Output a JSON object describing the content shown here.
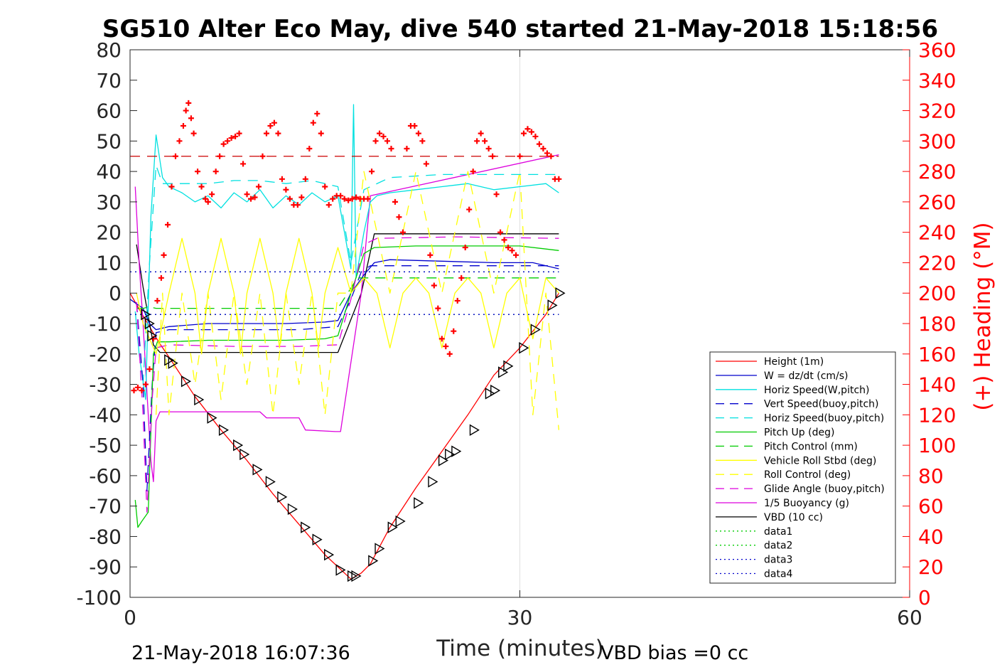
{
  "chart_data": {
    "type": "line",
    "title": "SG510 Alter Eco May, dive 540 started 21-May-2018 15:18:56",
    "xlabel": "Time (minutes)",
    "ylabel": "",
    "y2label": "(+) Heading (°M)",
    "xlim": [
      0,
      60
    ],
    "ylim": [
      -100,
      80
    ],
    "y2lim": [
      0,
      360
    ],
    "x_ticks": [
      "0",
      "30",
      "60"
    ],
    "y_ticks": [
      "80",
      "70",
      "60",
      "50",
      "40",
      "30",
      "20",
      "10",
      "0",
      "-10",
      "-20",
      "-30",
      "-40",
      "-50",
      "-60",
      "-70",
      "-80",
      "-90",
      "-100"
    ],
    "y2_ticks": [
      "360",
      "340",
      "320",
      "300",
      "280",
      "260",
      "240",
      "220",
      "200",
      "180",
      "160",
      "140",
      "120",
      "100",
      "80",
      "60",
      "40",
      "20",
      "0"
    ],
    "grid": "x-only",
    "legend_position": "lower-right",
    "footer_left": "21-May-2018 16:07:36",
    "footer_right": "VBD bias =0 cc",
    "legend": [
      {
        "label": "Height (1m)",
        "color": "#ff0000",
        "style": "solid"
      },
      {
        "label": "W = dz/dt (cm/s)",
        "color": "#0000cc",
        "style": "solid"
      },
      {
        "label": "Horiz Speed(W,pitch)",
        "color": "#00e0e0",
        "style": "solid"
      },
      {
        "label": "Vert Speed(buoy,pitch)",
        "color": "#0000cc",
        "style": "dashed"
      },
      {
        "label": "Horiz Speed(buoy,pitch)",
        "color": "#00e0e0",
        "style": "dashed"
      },
      {
        "label": "Pitch Up (deg)",
        "color": "#00cc00",
        "style": "solid"
      },
      {
        "label": "Pitch Control (mm)",
        "color": "#00cc00",
        "style": "dashed"
      },
      {
        "label": "Vehicle Roll Stbd (deg)",
        "color": "#ffff00",
        "style": "solid"
      },
      {
        "label": "Roll Control (deg)",
        "color": "#ffff00",
        "style": "dashed"
      },
      {
        "label": "Glide Angle (buoy,pitch)",
        "color": "#dd00dd",
        "style": "dashed"
      },
      {
        "label": "1/5 Buoyancy (g)",
        "color": "#dd00dd",
        "style": "solid"
      },
      {
        "label": "VBD (10 cc)",
        "color": "#000000",
        "style": "solid"
      },
      {
        "label": "data1",
        "color": "#00cc00",
        "style": "dotted"
      },
      {
        "label": "data2",
        "color": "#00cc00",
        "style": "dotted"
      },
      {
        "label": "data3",
        "color": "#0000cc",
        "style": "dotted"
      },
      {
        "label": "data4",
        "color": "#0000cc",
        "style": "dotted"
      }
    ],
    "series": [
      {
        "name": "Height (1m)",
        "axis": "left",
        "color": "#ff0000",
        "x": [
          0,
          0.8,
          1.5,
          2.2,
          3,
          5,
          7,
          9,
          11,
          13,
          15,
          16.5,
          17,
          17.8,
          18.5,
          19,
          20,
          22,
          24,
          26,
          28,
          30,
          32,
          33
        ],
        "y": [
          0,
          -6,
          -11,
          -16,
          -21,
          -34,
          -45,
          -55,
          -66,
          -76,
          -86,
          -92,
          -94,
          -92,
          -89,
          -85,
          -77,
          -64,
          -52,
          -40,
          -27,
          -18,
          -7,
          0
        ]
      },
      {
        "name": "VBD (10 cc)",
        "axis": "left",
        "color": "#000000",
        "x": [
          0.5,
          1,
          1.8,
          2.3,
          15.5,
          16,
          17.8,
          18.8,
          33
        ],
        "y": [
          16,
          2,
          -17,
          -19.5,
          -19.5,
          -19.5,
          0,
          19.5,
          19.5
        ]
      },
      {
        "name": "1/5 Buoyancy (g)",
        "axis": "left",
        "color": "#dd00dd",
        "x": [
          0.4,
          0.7,
          1,
          1.4,
          1.6,
          1.8,
          2,
          2.3,
          10,
          10.5,
          13,
          13.5,
          15.8,
          16.2,
          17.8,
          18.5,
          33
        ],
        "y": [
          35,
          10,
          -10,
          -40,
          -55,
          -62,
          -42,
          -39,
          -39,
          -41,
          -41,
          -45,
          -45.5,
          -45.5,
          0,
          32,
          45.5
        ]
      },
      {
        "name": "Horiz Speed(W,pitch)",
        "axis": "left",
        "color": "#00e0e0",
        "x": [
          0.4,
          0.7,
          1.2,
          1.6,
          2,
          2.5,
          3,
          4,
          5,
          6,
          7,
          8,
          9,
          10,
          11,
          12,
          13,
          14,
          15,
          16,
          16.5,
          17,
          17.2,
          17.4,
          18,
          18.5,
          19,
          20,
          22,
          24,
          26,
          28,
          30,
          32,
          33
        ],
        "y": [
          -6,
          -20,
          -35,
          25,
          52,
          38,
          35,
          33,
          30,
          32,
          28,
          33,
          30,
          34,
          28,
          32,
          29,
          33,
          30,
          32,
          20,
          8,
          62,
          5,
          20,
          30,
          32,
          33,
          34,
          35,
          36,
          34,
          35,
          36,
          33
        ]
      },
      {
        "name": "Horiz Speed(buoy,pitch)",
        "axis": "left",
        "color": "#00e0e0",
        "style": "dashed",
        "x": [
          1,
          1.5,
          2,
          2.5,
          4,
          6,
          8,
          10,
          12,
          14,
          16,
          17,
          18,
          20,
          24,
          28,
          33
        ],
        "y": [
          -30,
          10,
          42,
          36,
          36,
          36,
          37,
          37,
          36,
          37,
          35,
          10,
          34,
          38,
          39,
          39,
          39
        ]
      },
      {
        "name": "W = dz/dt (cm/s)",
        "axis": "left",
        "color": "#0000cc",
        "x": [
          0,
          1,
          1.5,
          2,
          3,
          6,
          9,
          12,
          15,
          16,
          17,
          18,
          18.8,
          20,
          24,
          28,
          31,
          33
        ],
        "y": [
          -2,
          -5,
          -10,
          -12,
          -11,
          -10,
          -10,
          -10,
          -9.5,
          -9,
          0,
          6,
          10,
          11,
          10.5,
          10,
          10,
          8
        ]
      },
      {
        "name": "Vert Speed(buoy,pitch)",
        "axis": "left",
        "color": "#0000cc",
        "style": "dashed",
        "x": [
          0.5,
          1,
          1.3,
          1.7,
          2,
          3,
          8,
          13,
          16,
          17,
          17.8,
          18.5,
          25,
          33
        ],
        "y": [
          -3,
          -30,
          -65,
          -30,
          -13,
          -12,
          -12,
          -12,
          -11,
          -2,
          7,
          9,
          9,
          9
        ]
      },
      {
        "name": "Pitch Up (deg)",
        "axis": "left",
        "color": "#00cc00",
        "x": [
          0.4,
          0.6,
          0.9,
          1.4,
          1.8,
          2.1,
          3,
          6,
          9,
          12,
          15,
          16,
          17,
          18,
          18.8,
          22,
          26,
          30,
          33
        ],
        "y": [
          -68,
          -77,
          -75,
          -72,
          -20,
          -16,
          -16,
          -15.5,
          -15.5,
          -15.5,
          -15,
          -14,
          0,
          13,
          15,
          15.5,
          15.5,
          15.5,
          14
        ]
      },
      {
        "name": "Pitch Control (mm)",
        "axis": "left",
        "color": "#00cc00",
        "style": "dashed",
        "x": [
          0.5,
          1,
          1.5,
          2,
          16,
          17.5,
          18.5,
          33
        ],
        "y": [
          -5,
          -5,
          -4.5,
          -5,
          -5,
          5,
          5,
          5
        ]
      },
      {
        "name": "Glide Angle (buoy,pitch)",
        "axis": "left",
        "color": "#dd00dd",
        "style": "dashed",
        "x": [
          0.5,
          1,
          1.3,
          1.7,
          2,
          3,
          8,
          13,
          16,
          17,
          18,
          19,
          25,
          33
        ],
        "y": [
          -3,
          -40,
          -72,
          -35,
          -18,
          -17,
          -17.5,
          -17.5,
          -17,
          -2,
          16,
          18,
          18.5,
          18
        ]
      },
      {
        "name": "Vehicle Roll Stbd (deg)",
        "axis": "left",
        "color": "#ffff00",
        "x": [
          0.5,
          1,
          2,
          3,
          4,
          5,
          5.5,
          6,
          7,
          8,
          8.5,
          9,
          10,
          11,
          11.5,
          12,
          13,
          14,
          14.5,
          15,
          16,
          17,
          18,
          19,
          20,
          21,
          22,
          23,
          24,
          25,
          26,
          27,
          28,
          29,
          30,
          31,
          32,
          33
        ],
        "y": [
          0,
          -10,
          -20,
          0,
          18,
          0,
          -20,
          0,
          18,
          0,
          -20,
          0,
          18,
          0,
          -18,
          0,
          18,
          0,
          -18,
          0,
          15,
          0,
          5,
          0,
          -18,
          0,
          5,
          0,
          -18,
          0,
          5,
          0,
          -18,
          0,
          5,
          -15,
          5,
          0
        ]
      },
      {
        "name": "Roll Control (deg)",
        "axis": "left",
        "color": "#ffff00",
        "style": "dashed",
        "x": [
          2,
          2.5,
          3,
          4,
          5,
          6,
          7,
          8,
          9,
          10,
          11,
          12,
          13,
          14,
          15,
          16,
          17,
          18,
          20,
          22,
          24,
          26,
          28,
          30,
          31,
          32,
          33
        ],
        "y": [
          -40,
          0,
          -40,
          0,
          -30,
          0,
          -35,
          0,
          -30,
          0,
          -40,
          0,
          -30,
          0,
          -40,
          0,
          0,
          40,
          0,
          40,
          0,
          40,
          0,
          40,
          -40,
          0,
          -45
        ]
      },
      {
        "name": "data1",
        "axis": "left",
        "color": "#00cc00",
        "style": "dotted",
        "x": [
          0,
          33
        ],
        "y": [
          7,
          7
        ]
      },
      {
        "name": "data2",
        "axis": "left",
        "color": "#00cc00",
        "style": "dotted",
        "x": [
          0,
          33
        ],
        "y": [
          -7,
          -7
        ]
      },
      {
        "name": "data3",
        "axis": "left",
        "color": "#0000cc",
        "style": "dotted",
        "x": [
          0,
          33
        ],
        "y": [
          7,
          7
        ]
      },
      {
        "name": "data4",
        "axis": "left",
        "color": "#0000cc",
        "style": "dotted",
        "x": [
          0,
          33
        ],
        "y": [
          -7,
          -7
        ]
      }
    ],
    "heading_target": {
      "axis": "right",
      "color": "#cc0000",
      "style": "dashed",
      "x": [
        0,
        33
      ],
      "y": [
        290,
        290
      ]
    },
    "heading_markers": {
      "axis": "right",
      "color": "#ff0000",
      "marker": "+",
      "x": [
        0.3,
        0.6,
        0.9,
        1.2,
        1.5,
        1.8,
        2.1,
        2.4,
        2.6,
        2.9,
        3.2,
        3.5,
        3.8,
        4.1,
        4.3,
        4.5,
        4.7,
        4.9,
        5.2,
        5.5,
        5.8,
        6,
        6.3,
        6.6,
        6.9,
        7.2,
        7.5,
        7.8,
        8.1,
        8.4,
        8.7,
        9,
        9.3,
        9.6,
        9.9,
        10.2,
        10.5,
        10.8,
        11.1,
        11.4,
        11.7,
        12,
        12.3,
        12.6,
        12.9,
        13.2,
        13.5,
        13.8,
        14.1,
        14.4,
        14.7,
        15,
        15.3,
        15.6,
        15.9,
        16.2,
        16.5,
        16.8,
        17.1,
        17.4,
        17.7,
        18,
        18.3,
        18.6,
        18.9,
        19.2,
        19.5,
        19.8,
        20.1,
        20.4,
        20.7,
        21,
        21.3,
        21.6,
        21.9,
        22.2,
        22.5,
        22.8,
        23.1,
        23.4,
        23.7,
        24,
        24.3,
        24.6,
        24.9,
        25.2,
        25.5,
        25.8,
        26.1,
        26.4,
        26.7,
        27,
        27.3,
        27.6,
        27.9,
        28.2,
        28.5,
        28.8,
        29.1,
        29.4,
        29.7,
        30,
        30.3,
        30.6,
        30.9,
        31.2,
        31.5,
        31.8,
        32.1,
        32.4,
        32.7,
        33
      ],
      "y": [
        136,
        138,
        136,
        140,
        150,
        170,
        195,
        210,
        225,
        245,
        270,
        290,
        300,
        310,
        320,
        325,
        315,
        305,
        280,
        270,
        262,
        260,
        265,
        280,
        290,
        298,
        300,
        302,
        303,
        305,
        285,
        265,
        262,
        263,
        270,
        290,
        305,
        310,
        312,
        305,
        275,
        268,
        262,
        258,
        258,
        263,
        275,
        295,
        312,
        318,
        305,
        270,
        258,
        262,
        264,
        264,
        262,
        261,
        262,
        263,
        262,
        262,
        262,
        280,
        300,
        305,
        303,
        300,
        295,
        260,
        250,
        240,
        295,
        310,
        310,
        305,
        300,
        285,
        225,
        205,
        190,
        170,
        165,
        160,
        175,
        195,
        210,
        230,
        255,
        280,
        300,
        305,
        300,
        295,
        290,
        265,
        240,
        235,
        230,
        228,
        225,
        290,
        305,
        308,
        306,
        303,
        298,
        295,
        292,
        290,
        275,
        275
      ]
    },
    "depth_triangles": {
      "axis": "left",
      "color": "#000000",
      "marker": "triangle",
      "x": [
        1.2,
        1.5,
        1.7,
        3,
        3.3,
        4.3,
        5.3,
        6.3,
        7.2,
        8.3,
        8.8,
        9.8,
        10.8,
        11.7,
        12.5,
        13.5,
        14.4,
        15.3,
        16.2,
        17.1,
        17.4,
        18.7,
        19.2,
        20.2,
        20.8,
        22.2,
        23.3,
        24.1,
        24.6,
        25.1,
        26.5,
        27.7,
        28.1,
        28.7,
        29.1,
        30.3,
        31.2,
        32.5,
        33.1
      ],
      "y": [
        -7,
        -10,
        -14,
        -22,
        -23,
        -29,
        -35,
        -41,
        -45,
        -50,
        -53,
        -58,
        -62,
        -67,
        -71,
        -77,
        -81,
        -86,
        -91,
        -93,
        -93,
        -88,
        -84,
        -77,
        -75,
        -69,
        -62,
        -55,
        -53,
        -52,
        -45,
        -33,
        -32,
        -26,
        -24,
        -18,
        -12,
        -4,
        0
      ]
    }
  }
}
